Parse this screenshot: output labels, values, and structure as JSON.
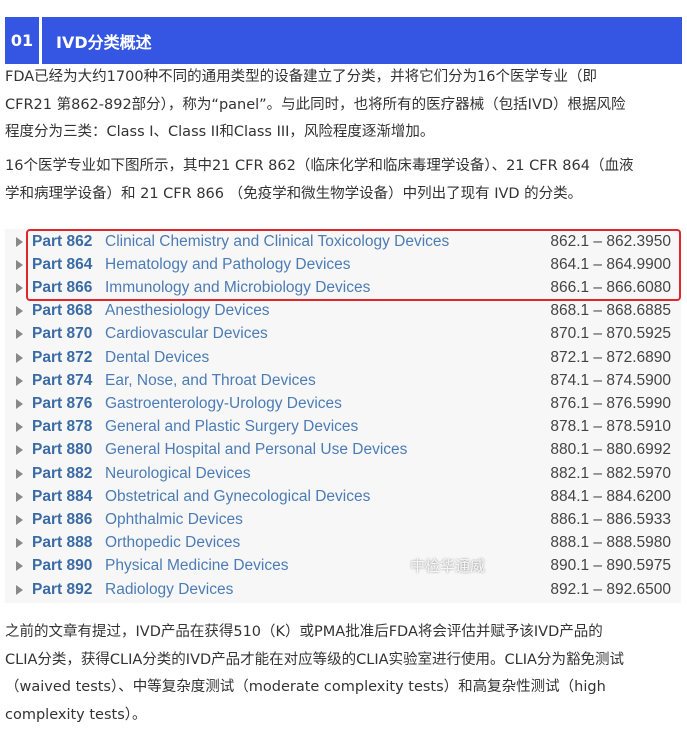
{
  "section": {
    "number": "01",
    "title": "IVD分类概述"
  },
  "paragraph1": [
    "FDA已经为大约1700种不同的通用类型的设备建立了分类，并将它们分为16个医学专业（即",
    "CFR21 第862-892部分），称为“panel”。与此同时，也将所有的医疗器械（包括IVD）根据风险",
    "程度分为三类：Class I、Class II和Class III，风险程度逐渐增加。"
  ],
  "paragraph2": [
    "16个医学专业如下图所示，其中21 CFR 862（临床化学和临床毒理学设备）、21 CFR 864（血液",
    "学和病理学设备）和 21 CFR 866 （免疫学和微生物学设备）中列出了现有 IVD 的分类。"
  ],
  "table": {
    "rows": [
      {
        "part": "Part 862",
        "name": "Clinical Chemistry and Clinical Toxicology Devices",
        "range": "862.1 – 862.3950"
      },
      {
        "part": "Part 864",
        "name": "Hematology and Pathology Devices",
        "range": "864.1 – 864.9900"
      },
      {
        "part": "Part 866",
        "name": "Immunology and Microbiology Devices",
        "range": "866.1 – 866.6080"
      },
      {
        "part": "Part 868",
        "name": "Anesthesiology Devices",
        "range": "868.1 – 868.6885"
      },
      {
        "part": "Part 870",
        "name": "Cardiovascular Devices",
        "range": "870.1 – 870.5925"
      },
      {
        "part": "Part 872",
        "name": "Dental Devices",
        "range": "872.1 – 872.6890"
      },
      {
        "part": "Part 874",
        "name": "Ear, Nose, and Throat Devices",
        "range": "874.1 – 874.5900"
      },
      {
        "part": "Part 876",
        "name": "Gastroenterology-Urology Devices",
        "range": "876.1 – 876.5990"
      },
      {
        "part": "Part 878",
        "name": "General and Plastic Surgery Devices",
        "range": "878.1 – 878.5910"
      },
      {
        "part": "Part 880",
        "name": "General Hospital and Personal Use Devices",
        "range": "880.1 – 880.6992"
      },
      {
        "part": "Part 882",
        "name": "Neurological Devices",
        "range": "882.1 – 882.5970"
      },
      {
        "part": "Part 884",
        "name": "Obstetrical and Gynecological Devices",
        "range": "884.1 – 884.6200"
      },
      {
        "part": "Part 886",
        "name": "Ophthalmic Devices",
        "range": "886.1 – 886.5933"
      },
      {
        "part": "Part 888",
        "name": "Orthopedic Devices",
        "range": "888.1 – 888.5980"
      },
      {
        "part": "Part 890",
        "name": "Physical Medicine Devices",
        "range": "890.1 – 890.5975"
      },
      {
        "part": "Part 892",
        "name": "Radiology Devices",
        "range": "892.1 – 892.6500"
      }
    ],
    "highlight_color": "#e0262a"
  },
  "watermark": "中检华通威",
  "paragraph3": [
    "之前的文章有提过，IVD产品在获得510（K）或PMA批准后FDA将会评估并赋予该IVD产品的",
    "CLIA分类，获得CLIA分类的IVD产品才能在对应等级的CLIA实验室进行使用。CLIA分为豁免测试",
    "（waived tests）、中等复杂度测试（moderate complexity tests）和高复杂性测试（high",
    "complexity tests）。"
  ],
  "colors": {
    "header": "#3456e3"
  }
}
